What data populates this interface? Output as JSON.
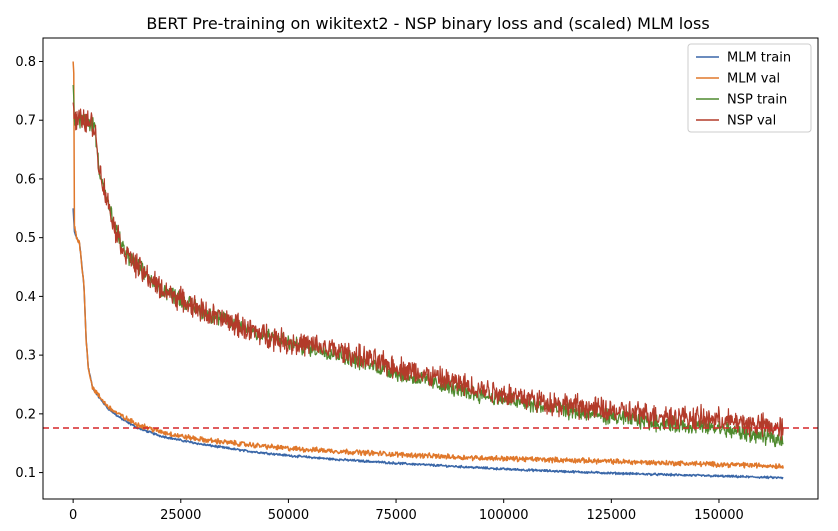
{
  "chart_data": {
    "type": "line",
    "title": "BERT Pre-training on wikitext2 - NSP binary loss and (scaled) MLM loss",
    "xlabel": "",
    "ylabel": "",
    "xlim": [
      -7000,
      173000
    ],
    "ylim": [
      0.055,
      0.84
    ],
    "xticks": [
      0,
      25000,
      50000,
      75000,
      100000,
      125000,
      150000
    ],
    "yticks": [
      0.1,
      0.2,
      0.3,
      0.4,
      0.5,
      0.6,
      0.7,
      0.8
    ],
    "x_tick_labels": [
      "0",
      "25000",
      "50000",
      "75000",
      "100000",
      "125000",
      "150000"
    ],
    "y_tick_labels": [
      "0.1",
      "0.2",
      "0.3",
      "0.4",
      "0.5",
      "0.6",
      "0.7",
      "0.8"
    ],
    "legend_position": "upper-right",
    "hline": {
      "y": 0.176,
      "color": "#d62728",
      "style": "dashed"
    },
    "series": [
      {
        "name": "MLM train",
        "color": "#3a67a8",
        "noise": 0.0015,
        "x": [
          0,
          300,
          800,
          1500,
          2500,
          3000,
          3500,
          4500,
          6000,
          8000,
          10000,
          12000,
          15000,
          20000,
          25000,
          30000,
          40000,
          50000,
          60000,
          75000,
          90000,
          100000,
          110000,
          125000,
          135000,
          150000,
          160000,
          165000
        ],
        "y": [
          0.55,
          0.51,
          0.5,
          0.49,
          0.42,
          0.33,
          0.28,
          0.245,
          0.228,
          0.21,
          0.198,
          0.188,
          0.176,
          0.163,
          0.155,
          0.148,
          0.137,
          0.129,
          0.123,
          0.116,
          0.11,
          0.106,
          0.103,
          0.099,
          0.097,
          0.094,
          0.092,
          0.091
        ]
      },
      {
        "name": "MLM val",
        "color": "#e0782b",
        "noise": 0.0035,
        "x": [
          0,
          150,
          300,
          800,
          1500,
          2500,
          3000,
          3500,
          4500,
          6000,
          8000,
          10000,
          12000,
          15000,
          20000,
          25000,
          30000,
          40000,
          50000,
          60000,
          75000,
          90000,
          100000,
          110000,
          125000,
          135000,
          150000,
          160000,
          165000
        ],
        "y": [
          0.8,
          0.78,
          0.52,
          0.5,
          0.49,
          0.42,
          0.33,
          0.28,
          0.245,
          0.23,
          0.213,
          0.202,
          0.193,
          0.182,
          0.17,
          0.162,
          0.156,
          0.148,
          0.141,
          0.137,
          0.131,
          0.126,
          0.124,
          0.122,
          0.119,
          0.117,
          0.114,
          0.112,
          0.111
        ]
      },
      {
        "name": "NSP train",
        "color": "#4f8a2e",
        "noise": 0.011,
        "x": [
          0,
          300,
          600,
          1000,
          3000,
          5000,
          6000,
          8000,
          10000,
          12000,
          15000,
          20000,
          25000,
          30000,
          40000,
          50000,
          60000,
          75000,
          90000,
          100000,
          110000,
          125000,
          135000,
          150000,
          160000,
          165000
        ],
        "y": [
          0.76,
          0.71,
          0.7,
          0.7,
          0.7,
          0.69,
          0.62,
          0.56,
          0.51,
          0.475,
          0.45,
          0.415,
          0.395,
          0.375,
          0.345,
          0.32,
          0.305,
          0.27,
          0.24,
          0.225,
          0.21,
          0.195,
          0.185,
          0.175,
          0.162,
          0.155
        ]
      },
      {
        "name": "NSP val",
        "color": "#b33b2a",
        "noise": 0.016,
        "x": [
          0,
          300,
          600,
          1000,
          3000,
          5000,
          6000,
          8000,
          10000,
          12000,
          15000,
          20000,
          25000,
          30000,
          40000,
          50000,
          60000,
          75000,
          90000,
          100000,
          110000,
          125000,
          135000,
          150000,
          160000,
          165000
        ],
        "y": [
          0.73,
          0.71,
          0.7,
          0.7,
          0.7,
          0.69,
          0.62,
          0.56,
          0.51,
          0.475,
          0.45,
          0.415,
          0.395,
          0.375,
          0.345,
          0.322,
          0.31,
          0.28,
          0.25,
          0.235,
          0.22,
          0.205,
          0.198,
          0.19,
          0.18,
          0.175
        ]
      }
    ]
  }
}
